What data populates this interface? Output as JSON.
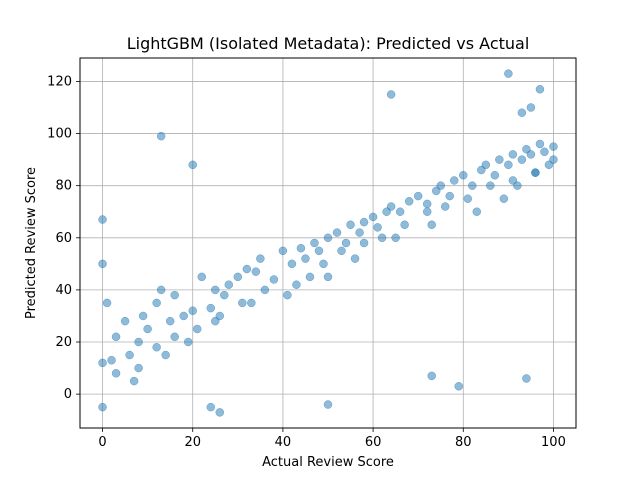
{
  "chart_data": {
    "type": "scatter",
    "title": "LightGBM (Isolated Metadata): Predicted vs Actual",
    "xlabel": "Actual Review Score",
    "ylabel": "Predicted Review Score",
    "xlim": [
      -5,
      105
    ],
    "ylim": [
      -13,
      129
    ],
    "xticks": [
      0,
      20,
      40,
      60,
      80,
      100
    ],
    "yticks": [
      0,
      20,
      40,
      60,
      80,
      100,
      120
    ],
    "xtick_labels": [
      "0",
      "20",
      "40",
      "60",
      "80",
      "100"
    ],
    "ytick_labels": [
      "0",
      "20",
      "40",
      "60",
      "80",
      "100",
      "120"
    ],
    "grid": true,
    "marker_color": "#1f77b4",
    "marker_alpha": 0.5,
    "series": [
      {
        "x": [
          0,
          0,
          0,
          0,
          1,
          2,
          3,
          5,
          6,
          8,
          9,
          10,
          12,
          13,
          15,
          16,
          18,
          20,
          22,
          24,
          25,
          27,
          28,
          30,
          32,
          34,
          35,
          38,
          40,
          42,
          44,
          45,
          47,
          48,
          50,
          50,
          52,
          54,
          55,
          57,
          58,
          60,
          61,
          63,
          64,
          66,
          68,
          70,
          72,
          74,
          75,
          77,
          78,
          80,
          82,
          84,
          85,
          87,
          88,
          90,
          91,
          93,
          94,
          95,
          97,
          98,
          100,
          100,
          3,
          8,
          12,
          16,
          21,
          26,
          31,
          36,
          43,
          49,
          53,
          58,
          62,
          67,
          72,
          76,
          81,
          86,
          91,
          96,
          99,
          7,
          14,
          19,
          25,
          33,
          41,
          46,
          56,
          65,
          73,
          83,
          89,
          92,
          96,
          13,
          64,
          90,
          93,
          95,
          97,
          73,
          79,
          94,
          50,
          20,
          24,
          26
        ],
        "y": [
          -5,
          67,
          50,
          12,
          35,
          13,
          22,
          28,
          15,
          20,
          30,
          25,
          35,
          40,
          28,
          38,
          30,
          32,
          45,
          33,
          40,
          38,
          42,
          45,
          48,
          47,
          52,
          44,
          55,
          50,
          56,
          52,
          58,
          55,
          60,
          45,
          62,
          58,
          65,
          62,
          66,
          68,
          64,
          70,
          72,
          70,
          74,
          76,
          73,
          78,
          80,
          76,
          82,
          84,
          80,
          86,
          88,
          84,
          90,
          88,
          92,
          90,
          94,
          92,
          96,
          93,
          95,
          90,
          8,
          10,
          18,
          22,
          25,
          30,
          35,
          40,
          42,
          50,
          55,
          58,
          60,
          65,
          70,
          72,
          75,
          80,
          82,
          85,
          88,
          5,
          15,
          20,
          28,
          35,
          38,
          45,
          52,
          60,
          65,
          70,
          75,
          80,
          85,
          99,
          115,
          123,
          108,
          110,
          117,
          7,
          3,
          6,
          -4,
          88,
          -5,
          -7
        ]
      }
    ]
  }
}
